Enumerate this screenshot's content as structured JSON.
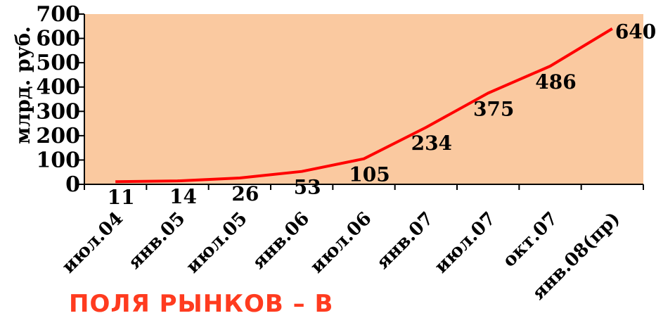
{
  "chart_data": {
    "type": "line",
    "categories": [
      "июл.04",
      "янв.05",
      "июл.05",
      "янв.06",
      "июл.06",
      "янв.07",
      "июл.07",
      "окт.07",
      "янв.08(пр)"
    ],
    "series": [
      {
        "values": [
          11,
          14,
          26,
          53,
          105,
          234,
          375,
          486,
          640
        ],
        "color": "#ff0000"
      }
    ],
    "ylabel": "млрд. руб.",
    "ylim": [
      0,
      700
    ],
    "yticks": [
      0,
      100,
      200,
      300,
      400,
      500,
      600,
      700
    ],
    "grid": false,
    "legend": "none",
    "plot_background": "#fac9a0"
  },
  "footer": {
    "text": "ПОЛЯ РЫНКОВ – В"
  }
}
